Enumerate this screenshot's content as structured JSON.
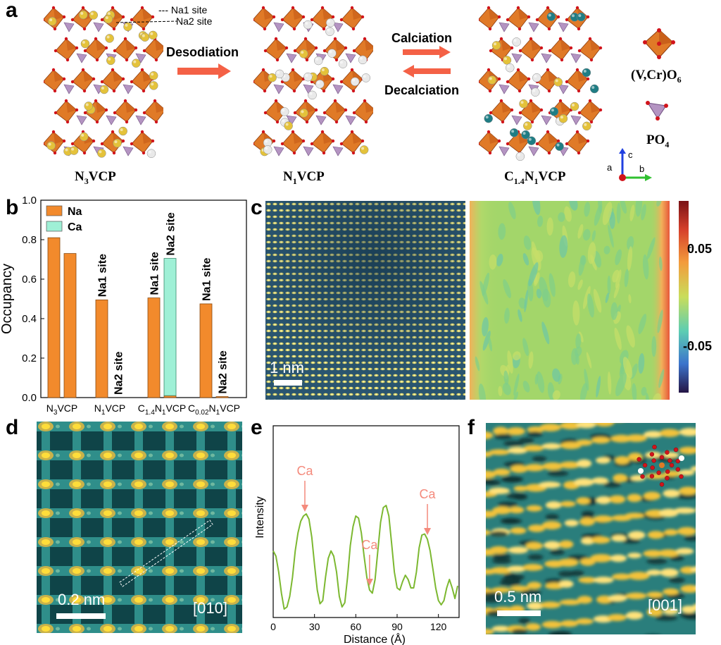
{
  "panels": {
    "a": "a",
    "b": "b",
    "c": "c",
    "d": "d",
    "e": "e",
    "f": "f"
  },
  "panel_a": {
    "site_labels": [
      "Na1 site",
      "Na2 site"
    ],
    "structures": [
      {
        "label_main": "N",
        "label_sub": "3",
        "label_rest": "VCP"
      },
      {
        "label_main": "N",
        "label_sub": "1",
        "label_rest": "VCP"
      },
      {
        "label_main": "C",
        "label_sub": "1.4",
        "label_mid": "N",
        "label_sub2": "1",
        "label_rest": "VCP"
      }
    ],
    "arrow_desodiation": "Desodiation",
    "arrow_calciation": "Calciation",
    "arrow_decalciation": "Decalciation",
    "legend": {
      "octahedron": "(V,Cr)O",
      "octahedron_sub": "6",
      "tetrahedron": "PO",
      "tetrahedron_sub": "4"
    },
    "axes": {
      "a": "a",
      "b": "b",
      "c": "c"
    },
    "colors": {
      "octahedron": "#e07a27",
      "tetrahedron": "#b494c2",
      "na": "#e4c23a",
      "ca": "#1f7d84",
      "vacancy": "#e9e9e9",
      "oxygen": "#d1141b",
      "arrow": "#f46146"
    }
  },
  "chart_data": {
    "type": "bar",
    "ylabel": "Occupancy",
    "ylim": [
      0,
      1.0
    ],
    "yticks": [
      "0.0",
      "0.2",
      "0.4",
      "0.6",
      "0.8",
      "1.0"
    ],
    "categories": [
      "N3VCP",
      "N1VCP",
      "C1.4N1VCP",
      "C0.02N1VCP"
    ],
    "category_labels": [
      {
        "main": "N",
        "sub": "3",
        "rest": "VCP"
      },
      {
        "main": "N",
        "sub": "1",
        "rest": "VCP"
      },
      {
        "main": "C",
        "sub": "1.4",
        "mid": "N",
        "sub2": "1",
        "rest": "VCP"
      },
      {
        "main": "C",
        "sub": "0.02",
        "mid": "N",
        "sub2": "1",
        "rest": "VCP"
      }
    ],
    "legend": [
      {
        "name": "Na",
        "color": "#f28a2c"
      },
      {
        "name": "Ca",
        "color": "#9ff0d6"
      }
    ],
    "bars": [
      {
        "category": 0,
        "site": "Na1",
        "na": 0.81,
        "ca": 0.0
      },
      {
        "category": 0,
        "site": "Na2",
        "na": 0.73,
        "ca": 0.0
      },
      {
        "category": 1,
        "site": "Na1",
        "na": 0.495,
        "ca": 0.0,
        "label": "Na1 site"
      },
      {
        "category": 1,
        "site": "Na2",
        "na": 0.0,
        "ca": 0.0,
        "label": "Na2 site"
      },
      {
        "category": 2,
        "site": "Na1",
        "na": 0.505,
        "ca": 0.0,
        "label": "Na1 site"
      },
      {
        "category": 2,
        "site": "Na2",
        "na": 0.01,
        "ca": 0.695,
        "label": "Na2 site"
      },
      {
        "category": 3,
        "site": "Na1",
        "na": 0.475,
        "ca": 0.0,
        "label": "Na1 site"
      },
      {
        "category": 3,
        "site": "Na2",
        "na": 0.005,
        "ca": 0.0,
        "label": "Na2 site"
      }
    ]
  },
  "panel_c": {
    "scale_bar": "1 nm",
    "colorbar_ticks": [
      "0.05",
      "-0.05"
    ],
    "colorbar_range": [
      -0.1,
      0.1
    ]
  },
  "panel_d": {
    "scale_bar": "0.2 nm",
    "zone_axis": "[010]"
  },
  "profile_data": {
    "type": "line",
    "xlabel": "Distance (Å)",
    "ylabel": "Intensity",
    "xlim": [
      0,
      135
    ],
    "xticks": [
      "0",
      "30",
      "60",
      "90",
      "120"
    ],
    "x": [
      0,
      2,
      4,
      6,
      8,
      10,
      12,
      14,
      16,
      18,
      20,
      22,
      24,
      26,
      28,
      30,
      32,
      34,
      36,
      38,
      40,
      42,
      44,
      46,
      48,
      50,
      52,
      54,
      56,
      58,
      60,
      62,
      64,
      66,
      68,
      70,
      72,
      74,
      76,
      78,
      80,
      82,
      84,
      86,
      88,
      90,
      92,
      94,
      96,
      98,
      100,
      102,
      104,
      106,
      108,
      110,
      112,
      114,
      116,
      118,
      120,
      122,
      124,
      126,
      128,
      130,
      132,
      134
    ],
    "y": [
      0.55,
      0.5,
      0.35,
      0.15,
      0.0,
      0.02,
      0.12,
      0.3,
      0.55,
      0.72,
      0.83,
      0.88,
      0.9,
      0.85,
      0.68,
      0.42,
      0.18,
      0.05,
      0.08,
      0.3,
      0.48,
      0.55,
      0.5,
      0.35,
      0.12,
      0.02,
      0.06,
      0.3,
      0.6,
      0.78,
      0.88,
      0.86,
      0.72,
      0.5,
      0.3,
      0.18,
      0.15,
      0.28,
      0.55,
      0.82,
      0.96,
      0.98,
      0.88,
      0.62,
      0.35,
      0.2,
      0.18,
      0.26,
      0.32,
      0.28,
      0.2,
      0.2,
      0.35,
      0.58,
      0.7,
      0.71,
      0.66,
      0.55,
      0.38,
      0.2,
      0.08,
      0.04,
      0.08,
      0.2,
      0.28,
      0.2,
      0.1,
      0.22
    ],
    "annotations": [
      {
        "label": "Ca",
        "x": 23
      },
      {
        "label": "Ca",
        "x": 70
      },
      {
        "label": "Ca",
        "x": 112
      }
    ],
    "color": "#7cb830",
    "annotation_color": "#f48a7c"
  },
  "panel_f": {
    "scale_bar": "0.5 nm",
    "zone_axis": "[001]"
  }
}
